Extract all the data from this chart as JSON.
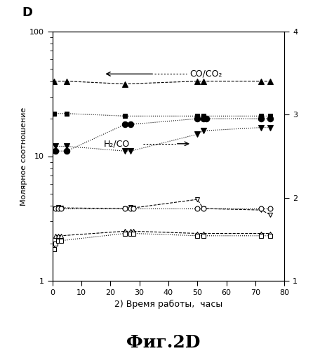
{
  "title_letter": "D",
  "xlabel": "2) Время работы,  часы",
  "ylabel_left": "Молярное соотношение",
  "figure_title": "Фиг.2D",
  "annotation_co": "CO/CO₂",
  "annotation_h2": "H₂/CO",
  "xlim": [
    0,
    80
  ],
  "ylim_left": [
    1,
    100
  ],
  "xticks": [
    0,
    10,
    20,
    30,
    40,
    50,
    60,
    70,
    80
  ],
  "series": [
    {
      "name": "filled_triangle_up",
      "x": [
        0.5,
        5,
        25,
        50,
        52,
        72,
        75
      ],
      "y": [
        40,
        40,
        38,
        40,
        40,
        40,
        40
      ],
      "marker": "^",
      "filled": true,
      "line_style": "--",
      "markersize": 6,
      "lw": 0.8
    },
    {
      "name": "filled_square",
      "x": [
        0.5,
        5,
        25,
        50,
        52,
        72,
        75
      ],
      "y": [
        22,
        22,
        21,
        21,
        21,
        21,
        21
      ],
      "marker": "s",
      "filled": true,
      "line_style": ":",
      "markersize": 5,
      "lw": 0.8
    },
    {
      "name": "filled_circle",
      "x": [
        1,
        5,
        25,
        27,
        50,
        52,
        53,
        72,
        75
      ],
      "y": [
        11,
        11,
        18,
        18,
        20,
        20,
        20,
        20,
        20
      ],
      "marker": "o",
      "filled": true,
      "line_style": ":",
      "markersize": 6,
      "lw": 0.8
    },
    {
      "name": "filled_triangle_down",
      "x": [
        1,
        5,
        25,
        27,
        50,
        52,
        72,
        75
      ],
      "y": [
        12,
        12,
        11,
        11,
        15,
        16,
        17,
        17
      ],
      "marker": "v",
      "filled": true,
      "line_style": ":",
      "markersize": 6,
      "lw": 0.8
    },
    {
      "name": "open_triangle_down",
      "x": [
        1,
        2,
        3,
        25,
        27,
        28,
        50,
        52,
        72,
        75
      ],
      "y": [
        3.8,
        3.9,
        3.85,
        3.8,
        3.9,
        3.85,
        4.5,
        3.8,
        3.7,
        3.4
      ],
      "marker": "v",
      "filled": false,
      "line_style": "--",
      "markersize": 5,
      "lw": 0.8
    },
    {
      "name": "open_circle",
      "x": [
        1,
        2,
        3,
        25,
        27,
        28,
        50,
        52,
        72,
        75
      ],
      "y": [
        3.8,
        3.8,
        3.8,
        3.8,
        3.8,
        3.8,
        3.8,
        3.8,
        3.8,
        3.8
      ],
      "marker": "o",
      "filled": false,
      "line_style": ":",
      "markersize": 5,
      "lw": 0.8
    },
    {
      "name": "open_triangle_up",
      "x": [
        1,
        2,
        3,
        25,
        27,
        28,
        50,
        52,
        72,
        75
      ],
      "y": [
        2.3,
        2.3,
        2.3,
        2.5,
        2.5,
        2.5,
        2.4,
        2.4,
        2.4,
        2.4
      ],
      "marker": "^",
      "filled": false,
      "line_style": "--",
      "markersize": 5,
      "lw": 0.8
    },
    {
      "name": "open_square",
      "x": [
        0.5,
        1,
        2,
        3,
        25,
        27,
        28,
        50,
        52,
        72,
        75
      ],
      "y": [
        1.8,
        2.0,
        2.1,
        2.1,
        2.4,
        2.4,
        2.4,
        2.3,
        2.3,
        2.3,
        2.3
      ],
      "marker": "s",
      "filled": false,
      "line_style": ":",
      "markersize": 5,
      "lw": 0.8
    }
  ]
}
